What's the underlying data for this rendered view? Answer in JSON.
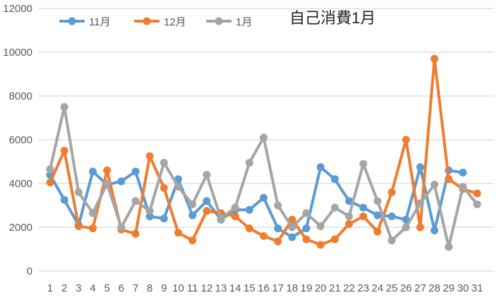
{
  "chart_data": {
    "type": "line",
    "title": "自己消費1月",
    "xlabel": "",
    "ylabel": "",
    "ylim": [
      0,
      12000
    ],
    "yticks": [
      "0",
      "2000",
      "4000",
      "6000",
      "8000",
      "10000",
      "12000"
    ],
    "x": [
      "1",
      "2",
      "3",
      "4",
      "5",
      "6",
      "7",
      "8",
      "9",
      "10",
      "11",
      "12",
      "13",
      "14",
      "15",
      "16",
      "17",
      "18",
      "19",
      "20",
      "21",
      "22",
      "23",
      "24",
      "25",
      "26",
      "27",
      "28",
      "29",
      "30",
      "31"
    ],
    "grid": true,
    "legend": "top-left",
    "series": [
      {
        "name": "11月",
        "color": "#5B9BD5",
        "values": [
          4400,
          3250,
          2100,
          4550,
          3950,
          4100,
          4550,
          2500,
          2400,
          4200,
          2550,
          3200,
          2350,
          2800,
          2800,
          3350,
          1950,
          1550,
          1950,
          4750,
          4200,
          3200,
          2900,
          2550,
          2500,
          2350,
          4750,
          1850,
          4600,
          4500,
          null
        ]
      },
      {
        "name": "12月",
        "color": "#ED7D31",
        "values": [
          4050,
          5500,
          2050,
          1950,
          4600,
          1900,
          1700,
          5250,
          3800,
          1750,
          1400,
          2750,
          2650,
          2500,
          1950,
          1600,
          1350,
          2350,
          1450,
          1200,
          1450,
          2150,
          2500,
          1800,
          3600,
          6000,
          2000,
          9700,
          4200,
          3750,
          3550
        ]
      },
      {
        "name": "1月",
        "color": "#A5A5A5",
        "values": [
          4650,
          7500,
          3600,
          2650,
          4000,
          2000,
          3200,
          2750,
          4950,
          3850,
          3050,
          4400,
          2400,
          2900,
          4950,
          6100,
          3000,
          2000,
          2650,
          2050,
          2900,
          2500,
          4900,
          3200,
          1400,
          2000,
          3100,
          3950,
          1100,
          3850,
          3050
        ]
      }
    ]
  }
}
